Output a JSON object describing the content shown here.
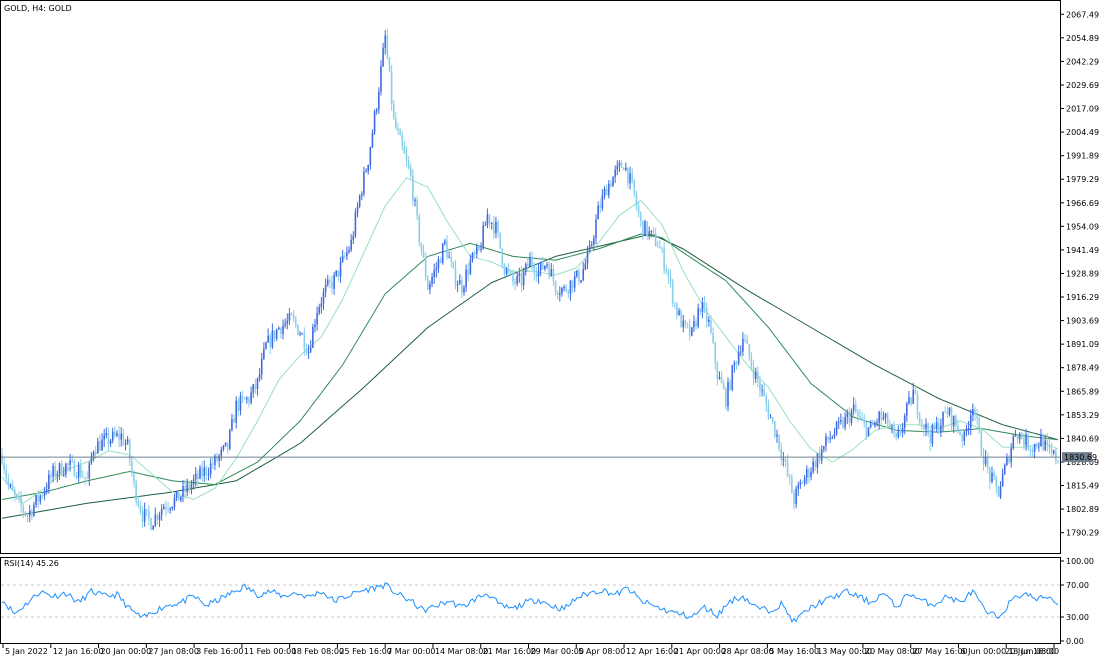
{
  "chart_data": {
    "type": "candlestick",
    "symbol_label": "GOLD, H4:  GOLD",
    "current_price": 1830.69,
    "current_price_label": "1830.69",
    "ylim": [
      1781.0,
      2073.0
    ],
    "y_ticks": [
      "2067.49",
      "2054.89",
      "2042.29",
      "2029.69",
      "2017.09",
      "2004.49",
      "1991.89",
      "1979.29",
      "1966.69",
      "1954.09",
      "1941.49",
      "1928.89",
      "1916.29",
      "1903.69",
      "1891.09",
      "1878.49",
      "1865.89",
      "1853.29",
      "1840.69",
      "1828.09",
      "1815.49",
      "1802.89",
      "1790.29"
    ],
    "x_ticks": [
      "5 Jan 2022",
      "12 Jan 16:00",
      "20 Jan 00:00",
      "27 Jan 08:00",
      "3 Feb 16:00",
      "11 Feb 00:00",
      "18 Feb 08:00",
      "25 Feb 16:00",
      "7 Mar 00:00",
      "14 Mar 08:00",
      "21 Mar 16:00",
      "29 Mar 00:00",
      "5 Apr 08:00",
      "12 Apr 16:00",
      "21 Apr 00:00",
      "28 Apr 08:00",
      "5 May 16:00",
      "13 May 00:00",
      "20 May 08:00",
      "27 May 16:00",
      "6 Jun 00:00",
      "13 Jun 08:00",
      "20 Jun 16:00"
    ],
    "price_path": [
      {
        "x": 0,
        "y": 1832
      },
      {
        "x": 3,
        "y": 1815
      },
      {
        "x": 8,
        "y": 1805
      },
      {
        "x": 12,
        "y": 1800
      },
      {
        "x": 18,
        "y": 1810
      },
      {
        "x": 24,
        "y": 1822
      },
      {
        "x": 30,
        "y": 1826
      },
      {
        "x": 36,
        "y": 1824
      },
      {
        "x": 40,
        "y": 1818
      },
      {
        "x": 43,
        "y": 1836
      },
      {
        "x": 50,
        "y": 1840
      },
      {
        "x": 56,
        "y": 1842
      },
      {
        "x": 59,
        "y": 1836
      },
      {
        "x": 62,
        "y": 1815
      },
      {
        "x": 66,
        "y": 1800
      },
      {
        "x": 70,
        "y": 1796
      },
      {
        "x": 76,
        "y": 1805
      },
      {
        "x": 82,
        "y": 1808
      },
      {
        "x": 88,
        "y": 1815
      },
      {
        "x": 94,
        "y": 1822
      },
      {
        "x": 100,
        "y": 1828
      },
      {
        "x": 106,
        "y": 1836
      },
      {
        "x": 110,
        "y": 1858
      },
      {
        "x": 116,
        "y": 1862
      },
      {
        "x": 120,
        "y": 1870
      },
      {
        "x": 124,
        "y": 1890
      },
      {
        "x": 130,
        "y": 1900
      },
      {
        "x": 136,
        "y": 1904
      },
      {
        "x": 140,
        "y": 1898
      },
      {
        "x": 144,
        "y": 1888
      },
      {
        "x": 148,
        "y": 1910
      },
      {
        "x": 152,
        "y": 1920
      },
      {
        "x": 156,
        "y": 1925
      },
      {
        "x": 160,
        "y": 1935
      },
      {
        "x": 164,
        "y": 1945
      },
      {
        "x": 168,
        "y": 1970
      },
      {
        "x": 172,
        "y": 1990
      },
      {
        "x": 176,
        "y": 2020
      },
      {
        "x": 180,
        "y": 2055
      },
      {
        "x": 184,
        "y": 2010
      },
      {
        "x": 188,
        "y": 1995
      },
      {
        "x": 192,
        "y": 1980
      },
      {
        "x": 196,
        "y": 1948
      },
      {
        "x": 200,
        "y": 1922
      },
      {
        "x": 204,
        "y": 1932
      },
      {
        "x": 208,
        "y": 1945
      },
      {
        "x": 212,
        "y": 1928
      },
      {
        "x": 216,
        "y": 1922
      },
      {
        "x": 220,
        "y": 1935
      },
      {
        "x": 224,
        "y": 1940
      },
      {
        "x": 228,
        "y": 1960
      },
      {
        "x": 232,
        "y": 1953
      },
      {
        "x": 236,
        "y": 1932
      },
      {
        "x": 240,
        "y": 1924
      },
      {
        "x": 244,
        "y": 1925
      },
      {
        "x": 248,
        "y": 1936
      },
      {
        "x": 252,
        "y": 1930
      },
      {
        "x": 256,
        "y": 1935
      },
      {
        "x": 260,
        "y": 1922
      },
      {
        "x": 264,
        "y": 1920
      },
      {
        "x": 268,
        "y": 1925
      },
      {
        "x": 272,
        "y": 1928
      },
      {
        "x": 276,
        "y": 1940
      },
      {
        "x": 280,
        "y": 1962
      },
      {
        "x": 284,
        "y": 1975
      },
      {
        "x": 288,
        "y": 1982
      },
      {
        "x": 292,
        "y": 1988
      },
      {
        "x": 296,
        "y": 1975
      },
      {
        "x": 300,
        "y": 1955
      },
      {
        "x": 304,
        "y": 1950
      },
      {
        "x": 308,
        "y": 1945
      },
      {
        "x": 312,
        "y": 1932
      },
      {
        "x": 316,
        "y": 1912
      },
      {
        "x": 320,
        "y": 1900
      },
      {
        "x": 324,
        "y": 1896
      },
      {
        "x": 328,
        "y": 1912
      },
      {
        "x": 332,
        "y": 1902
      },
      {
        "x": 336,
        "y": 1875
      },
      {
        "x": 340,
        "y": 1862
      },
      {
        "x": 344,
        "y": 1880
      },
      {
        "x": 348,
        "y": 1895
      },
      {
        "x": 352,
        "y": 1880
      },
      {
        "x": 356,
        "y": 1868
      },
      {
        "x": 360,
        "y": 1855
      },
      {
        "x": 364,
        "y": 1842
      },
      {
        "x": 368,
        "y": 1825
      },
      {
        "x": 372,
        "y": 1808
      },
      {
        "x": 376,
        "y": 1818
      },
      {
        "x": 380,
        "y": 1825
      },
      {
        "x": 384,
        "y": 1832
      },
      {
        "x": 388,
        "y": 1840
      },
      {
        "x": 392,
        "y": 1845
      },
      {
        "x": 396,
        "y": 1850
      },
      {
        "x": 400,
        "y": 1856
      },
      {
        "x": 404,
        "y": 1848
      },
      {
        "x": 408,
        "y": 1845
      },
      {
        "x": 412,
        "y": 1852
      },
      {
        "x": 416,
        "y": 1849
      },
      {
        "x": 420,
        "y": 1838
      },
      {
        "x": 424,
        "y": 1852
      },
      {
        "x": 428,
        "y": 1865
      },
      {
        "x": 432,
        "y": 1850
      },
      {
        "x": 436,
        "y": 1842
      },
      {
        "x": 440,
        "y": 1848
      },
      {
        "x": 444,
        "y": 1855
      },
      {
        "x": 448,
        "y": 1848
      },
      {
        "x": 452,
        "y": 1840
      },
      {
        "x": 456,
        "y": 1860
      },
      {
        "x": 460,
        "y": 1835
      },
      {
        "x": 464,
        "y": 1820
      },
      {
        "x": 468,
        "y": 1812
      },
      {
        "x": 472,
        "y": 1828
      },
      {
        "x": 476,
        "y": 1845
      },
      {
        "x": 480,
        "y": 1840
      },
      {
        "x": 484,
        "y": 1836
      },
      {
        "x": 488,
        "y": 1840
      },
      {
        "x": 492,
        "y": 1832
      },
      {
        "x": 496,
        "y": 1830
      }
    ],
    "ma_fast_path": [
      {
        "x": 0,
        "y": 1820
      },
      {
        "x": 10,
        "y": 1806
      },
      {
        "x": 20,
        "y": 1814
      },
      {
        "x": 30,
        "y": 1824
      },
      {
        "x": 40,
        "y": 1828
      },
      {
        "x": 50,
        "y": 1834
      },
      {
        "x": 60,
        "y": 1832
      },
      {
        "x": 70,
        "y": 1822
      },
      {
        "x": 80,
        "y": 1812
      },
      {
        "x": 90,
        "y": 1808
      },
      {
        "x": 100,
        "y": 1814
      },
      {
        "x": 110,
        "y": 1830
      },
      {
        "x": 120,
        "y": 1850
      },
      {
        "x": 130,
        "y": 1872
      },
      {
        "x": 140,
        "y": 1885
      },
      {
        "x": 150,
        "y": 1895
      },
      {
        "x": 160,
        "y": 1915
      },
      {
        "x": 170,
        "y": 1940
      },
      {
        "x": 180,
        "y": 1965
      },
      {
        "x": 190,
        "y": 1980
      },
      {
        "x": 200,
        "y": 1975
      },
      {
        "x": 210,
        "y": 1955
      },
      {
        "x": 220,
        "y": 1938
      },
      {
        "x": 230,
        "y": 1935
      },
      {
        "x": 240,
        "y": 1930
      },
      {
        "x": 250,
        "y": 1930
      },
      {
        "x": 260,
        "y": 1928
      },
      {
        "x": 270,
        "y": 1932
      },
      {
        "x": 280,
        "y": 1945
      },
      {
        "x": 290,
        "y": 1960
      },
      {
        "x": 300,
        "y": 1968
      },
      {
        "x": 310,
        "y": 1955
      },
      {
        "x": 320,
        "y": 1930
      },
      {
        "x": 330,
        "y": 1910
      },
      {
        "x": 340,
        "y": 1895
      },
      {
        "x": 350,
        "y": 1880
      },
      {
        "x": 360,
        "y": 1868
      },
      {
        "x": 370,
        "y": 1850
      },
      {
        "x": 380,
        "y": 1835
      },
      {
        "x": 390,
        "y": 1828
      },
      {
        "x": 400,
        "y": 1835
      },
      {
        "x": 410,
        "y": 1845
      },
      {
        "x": 420,
        "y": 1848
      },
      {
        "x": 430,
        "y": 1848
      },
      {
        "x": 440,
        "y": 1846
      },
      {
        "x": 450,
        "y": 1850
      },
      {
        "x": 460,
        "y": 1846
      },
      {
        "x": 470,
        "y": 1836
      },
      {
        "x": 480,
        "y": 1836
      },
      {
        "x": 490,
        "y": 1838
      },
      {
        "x": 496,
        "y": 1835
      }
    ],
    "ma_mid_path": [
      {
        "x": 0,
        "y": 1808
      },
      {
        "x": 20,
        "y": 1812
      },
      {
        "x": 40,
        "y": 1818
      },
      {
        "x": 60,
        "y": 1823
      },
      {
        "x": 80,
        "y": 1818
      },
      {
        "x": 100,
        "y": 1816
      },
      {
        "x": 120,
        "y": 1828
      },
      {
        "x": 140,
        "y": 1850
      },
      {
        "x": 160,
        "y": 1880
      },
      {
        "x": 180,
        "y": 1918
      },
      {
        "x": 200,
        "y": 1938
      },
      {
        "x": 220,
        "y": 1945
      },
      {
        "x": 240,
        "y": 1938
      },
      {
        "x": 260,
        "y": 1936
      },
      {
        "x": 280,
        "y": 1942
      },
      {
        "x": 300,
        "y": 1950
      },
      {
        "x": 310,
        "y": 1948
      },
      {
        "x": 320,
        "y": 1940
      },
      {
        "x": 340,
        "y": 1925
      },
      {
        "x": 360,
        "y": 1900
      },
      {
        "x": 380,
        "y": 1870
      },
      {
        "x": 400,
        "y": 1852
      },
      {
        "x": 420,
        "y": 1845
      },
      {
        "x": 440,
        "y": 1844
      },
      {
        "x": 460,
        "y": 1846
      },
      {
        "x": 480,
        "y": 1842
      },
      {
        "x": 496,
        "y": 1840
      }
    ],
    "ma_slow_path": [
      {
        "x": 0,
        "y": 1798
      },
      {
        "x": 40,
        "y": 1806
      },
      {
        "x": 80,
        "y": 1812
      },
      {
        "x": 110,
        "y": 1818
      },
      {
        "x": 140,
        "y": 1838
      },
      {
        "x": 170,
        "y": 1868
      },
      {
        "x": 200,
        "y": 1900
      },
      {
        "x": 230,
        "y": 1924
      },
      {
        "x": 260,
        "y": 1938
      },
      {
        "x": 290,
        "y": 1946
      },
      {
        "x": 305,
        "y": 1950
      },
      {
        "x": 320,
        "y": 1942
      },
      {
        "x": 350,
        "y": 1920
      },
      {
        "x": 380,
        "y": 1900
      },
      {
        "x": 410,
        "y": 1880
      },
      {
        "x": 440,
        "y": 1862
      },
      {
        "x": 470,
        "y": 1848
      },
      {
        "x": 496,
        "y": 1840
      }
    ],
    "rsi": {
      "label": "RSI(14) 45.26",
      "period": 14,
      "value": 45.26,
      "ylim": [
        0,
        100
      ],
      "y_ticks": [
        "100.00",
        "70.00",
        "30.00",
        "0.00"
      ],
      "levels": [
        70,
        30
      ],
      "path": [
        {
          "x": 0,
          "y": 52
        },
        {
          "x": 6,
          "y": 34
        },
        {
          "x": 12,
          "y": 48
        },
        {
          "x": 18,
          "y": 62
        },
        {
          "x": 24,
          "y": 56
        },
        {
          "x": 30,
          "y": 60
        },
        {
          "x": 36,
          "y": 48
        },
        {
          "x": 42,
          "y": 62
        },
        {
          "x": 48,
          "y": 56
        },
        {
          "x": 54,
          "y": 58
        },
        {
          "x": 60,
          "y": 40
        },
        {
          "x": 66,
          "y": 28
        },
        {
          "x": 72,
          "y": 38
        },
        {
          "x": 78,
          "y": 45
        },
        {
          "x": 84,
          "y": 48
        },
        {
          "x": 90,
          "y": 56
        },
        {
          "x": 96,
          "y": 44
        },
        {
          "x": 102,
          "y": 52
        },
        {
          "x": 108,
          "y": 60
        },
        {
          "x": 114,
          "y": 68
        },
        {
          "x": 120,
          "y": 58
        },
        {
          "x": 126,
          "y": 62
        },
        {
          "x": 132,
          "y": 56
        },
        {
          "x": 138,
          "y": 60
        },
        {
          "x": 144,
          "y": 55
        },
        {
          "x": 150,
          "y": 62
        },
        {
          "x": 156,
          "y": 50
        },
        {
          "x": 162,
          "y": 56
        },
        {
          "x": 168,
          "y": 62
        },
        {
          "x": 174,
          "y": 66
        },
        {
          "x": 180,
          "y": 70
        },
        {
          "x": 186,
          "y": 58
        },
        {
          "x": 192,
          "y": 50
        },
        {
          "x": 198,
          "y": 38
        },
        {
          "x": 204,
          "y": 44
        },
        {
          "x": 210,
          "y": 50
        },
        {
          "x": 216,
          "y": 42
        },
        {
          "x": 222,
          "y": 52
        },
        {
          "x": 228,
          "y": 60
        },
        {
          "x": 234,
          "y": 44
        },
        {
          "x": 240,
          "y": 40
        },
        {
          "x": 246,
          "y": 48
        },
        {
          "x": 252,
          "y": 52
        },
        {
          "x": 258,
          "y": 44
        },
        {
          "x": 264,
          "y": 40
        },
        {
          "x": 270,
          "y": 54
        },
        {
          "x": 276,
          "y": 60
        },
        {
          "x": 282,
          "y": 64
        },
        {
          "x": 288,
          "y": 58
        },
        {
          "x": 294,
          "y": 66
        },
        {
          "x": 300,
          "y": 50
        },
        {
          "x": 306,
          "y": 44
        },
        {
          "x": 312,
          "y": 38
        },
        {
          "x": 318,
          "y": 34
        },
        {
          "x": 324,
          "y": 30
        },
        {
          "x": 330,
          "y": 42
        },
        {
          "x": 336,
          "y": 32
        },
        {
          "x": 342,
          "y": 50
        },
        {
          "x": 348,
          "y": 56
        },
        {
          "x": 354,
          "y": 42
        },
        {
          "x": 360,
          "y": 38
        },
        {
          "x": 366,
          "y": 46
        },
        {
          "x": 372,
          "y": 24
        },
        {
          "x": 378,
          "y": 38
        },
        {
          "x": 384,
          "y": 48
        },
        {
          "x": 390,
          "y": 54
        },
        {
          "x": 396,
          "y": 62
        },
        {
          "x": 402,
          "y": 56
        },
        {
          "x": 408,
          "y": 48
        },
        {
          "x": 414,
          "y": 60
        },
        {
          "x": 420,
          "y": 42
        },
        {
          "x": 426,
          "y": 60
        },
        {
          "x": 432,
          "y": 50
        },
        {
          "x": 438,
          "y": 46
        },
        {
          "x": 444,
          "y": 56
        },
        {
          "x": 450,
          "y": 48
        },
        {
          "x": 456,
          "y": 62
        },
        {
          "x": 462,
          "y": 36
        },
        {
          "x": 468,
          "y": 30
        },
        {
          "x": 474,
          "y": 50
        },
        {
          "x": 480,
          "y": 60
        },
        {
          "x": 486,
          "y": 52
        },
        {
          "x": 492,
          "y": 56
        },
        {
          "x": 496,
          "y": 45
        }
      ]
    },
    "colors": {
      "candle_dark": "#4169e1",
      "candle_light": "#87ceeb",
      "ma_fast": "#98e0c0",
      "ma_mid": "#2e8b57",
      "ma_slow": "#1f5f3f",
      "rsi_line": "#1e90ff",
      "price_line": "#708090",
      "grid_level": "#c8c8c8",
      "axis": "#000000",
      "price_label_bg": "#708090",
      "price_label_text": "#ffffff"
    }
  }
}
